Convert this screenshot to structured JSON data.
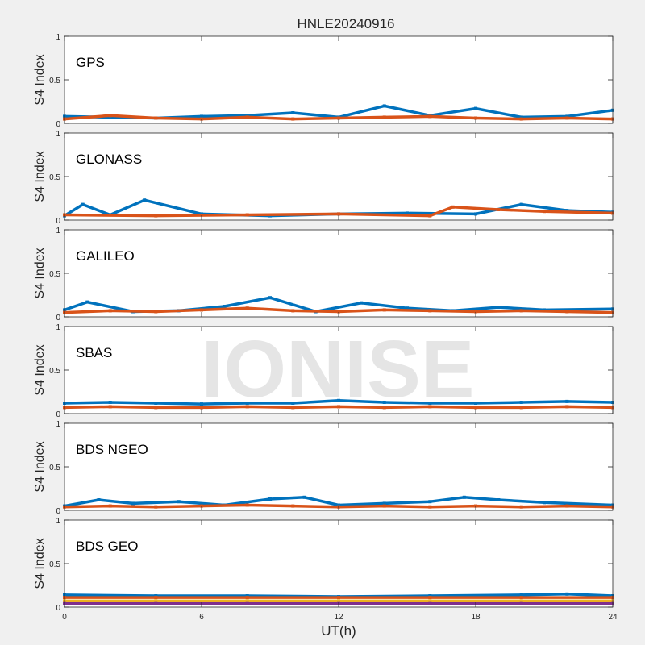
{
  "figure": {
    "title": "HNLE20240916",
    "watermark": "IONISE",
    "background_color": "#f0f0f0",
    "axes_color": "#ffffff"
  },
  "series_colors": [
    "#0072bd",
    "#d95319",
    "#edb120",
    "#7e2f8e",
    "#77ac30",
    "#4dbeee",
    "#a2142f"
  ],
  "chart_data": [
    {
      "type": "scatter",
      "panel_label": "GPS",
      "ylabel": "S4 Index",
      "xlabel": "",
      "xlim": [
        0,
        24
      ],
      "ylim": [
        0,
        1
      ],
      "xticks": [
        0,
        6,
        12,
        18,
        24
      ],
      "yticks": [
        0,
        0.5,
        1
      ],
      "yticklabels": [
        "0",
        "0.5",
        "1"
      ],
      "xticklabels": [],
      "grid": false,
      "series": [
        {
          "x": [
            0,
            2,
            4,
            6,
            8,
            10,
            12,
            14,
            16,
            18,
            20,
            22,
            24
          ],
          "y": [
            0.08,
            0.07,
            0.06,
            0.08,
            0.09,
            0.12,
            0.07,
            0.2,
            0.09,
            0.17,
            0.07,
            0.08,
            0.15
          ]
        },
        {
          "x": [
            0,
            2,
            4,
            6,
            8,
            10,
            12,
            14,
            16,
            18,
            20,
            22,
            24
          ],
          "y": [
            0.05,
            0.09,
            0.06,
            0.05,
            0.07,
            0.05,
            0.06,
            0.07,
            0.08,
            0.06,
            0.05,
            0.06,
            0.05
          ]
        }
      ]
    },
    {
      "type": "scatter",
      "panel_label": "GLONASS",
      "ylabel": "S4 Index",
      "xlabel": "",
      "xlim": [
        0,
        24
      ],
      "ylim": [
        0,
        1
      ],
      "xticks": [
        0,
        6,
        12,
        18,
        24
      ],
      "yticks": [
        0,
        0.5,
        1
      ],
      "yticklabels": [
        "0",
        "0.5",
        "1"
      ],
      "xticklabels": [],
      "grid": false,
      "series": [
        {
          "x": [
            0,
            0.8,
            2,
            3.5,
            6,
            9,
            12,
            15,
            18,
            20,
            22,
            24
          ],
          "y": [
            0.05,
            0.18,
            0.06,
            0.23,
            0.07,
            0.05,
            0.07,
            0.08,
            0.07,
            0.18,
            0.11,
            0.09
          ]
        },
        {
          "x": [
            0,
            4,
            8,
            12,
            16,
            17,
            19,
            21,
            24
          ],
          "y": [
            0.06,
            0.05,
            0.06,
            0.07,
            0.05,
            0.15,
            0.12,
            0.1,
            0.08
          ]
        }
      ]
    },
    {
      "type": "scatter",
      "panel_label": "GALILEO",
      "ylabel": "S4 Index",
      "xlabel": "",
      "xlim": [
        0,
        24
      ],
      "ylim": [
        0,
        1
      ],
      "xticks": [
        0,
        6,
        12,
        18,
        24
      ],
      "yticks": [
        0,
        0.5,
        1
      ],
      "yticklabels": [
        "0",
        "0.5",
        "1"
      ],
      "xticklabels": [],
      "grid": false,
      "series": [
        {
          "x": [
            0,
            1,
            3,
            5,
            7,
            9,
            11,
            13,
            15,
            17,
            19,
            21,
            24
          ],
          "y": [
            0.08,
            0.17,
            0.06,
            0.07,
            0.12,
            0.22,
            0.06,
            0.16,
            0.1,
            0.07,
            0.11,
            0.08,
            0.09
          ]
        },
        {
          "x": [
            0,
            2,
            4,
            6,
            8,
            10,
            12,
            14,
            16,
            18,
            20,
            22,
            24
          ],
          "y": [
            0.05,
            0.07,
            0.06,
            0.08,
            0.1,
            0.07,
            0.06,
            0.08,
            0.07,
            0.06,
            0.07,
            0.06,
            0.05
          ]
        }
      ]
    },
    {
      "type": "scatter",
      "panel_label": "SBAS",
      "ylabel": "S4 Index",
      "xlabel": "",
      "xlim": [
        0,
        24
      ],
      "ylim": [
        0,
        1
      ],
      "xticks": [
        0,
        6,
        12,
        18,
        24
      ],
      "yticks": [
        0,
        0.5,
        1
      ],
      "yticklabels": [
        "0",
        "0.5",
        "1"
      ],
      "xticklabels": [],
      "grid": false,
      "series": [
        {
          "x": [
            0,
            2,
            4,
            6,
            8,
            10,
            12,
            14,
            16,
            18,
            20,
            22,
            24
          ],
          "y": [
            0.12,
            0.13,
            0.12,
            0.11,
            0.12,
            0.12,
            0.15,
            0.13,
            0.12,
            0.12,
            0.13,
            0.14,
            0.13
          ]
        },
        {
          "x": [
            0,
            2,
            4,
            6,
            8,
            10,
            12,
            14,
            16,
            18,
            20,
            22,
            24
          ],
          "y": [
            0.07,
            0.08,
            0.07,
            0.07,
            0.08,
            0.07,
            0.08,
            0.07,
            0.08,
            0.07,
            0.07,
            0.08,
            0.07
          ]
        }
      ]
    },
    {
      "type": "scatter",
      "panel_label": "BDS NGEO",
      "ylabel": "S4 Index",
      "xlabel": "",
      "xlim": [
        0,
        24
      ],
      "ylim": [
        0,
        1
      ],
      "xticks": [
        0,
        6,
        12,
        18,
        24
      ],
      "yticks": [
        0,
        0.5,
        1
      ],
      "yticklabels": [
        "0",
        "0.5",
        "1"
      ],
      "xticklabels": [],
      "grid": false,
      "series": [
        {
          "x": [
            0,
            1.5,
            3,
            5,
            7,
            9,
            10.5,
            12,
            14,
            16,
            17.5,
            19,
            21,
            24
          ],
          "y": [
            0.05,
            0.12,
            0.08,
            0.1,
            0.06,
            0.13,
            0.15,
            0.06,
            0.08,
            0.1,
            0.15,
            0.12,
            0.09,
            0.06
          ]
        },
        {
          "x": [
            0,
            2,
            4,
            6,
            8,
            10,
            12,
            14,
            16,
            18,
            20,
            22,
            24
          ],
          "y": [
            0.04,
            0.05,
            0.04,
            0.05,
            0.06,
            0.05,
            0.04,
            0.05,
            0.04,
            0.05,
            0.04,
            0.05,
            0.04
          ]
        }
      ]
    },
    {
      "type": "scatter",
      "panel_label": "BDS GEO",
      "ylabel": "S4 Index",
      "xlabel": "UT(h)",
      "xlim": [
        0,
        24
      ],
      "ylim": [
        0,
        1
      ],
      "xticks": [
        0,
        6,
        12,
        18,
        24
      ],
      "yticks": [
        0,
        0.5,
        1
      ],
      "yticklabels": [
        "0",
        "0.5",
        "1"
      ],
      "xticklabels": [
        "0",
        "6",
        "12",
        "18",
        "24"
      ],
      "grid": false,
      "series": [
        {
          "x": [
            0,
            4,
            8,
            12,
            16,
            20,
            22,
            24
          ],
          "y": [
            0.14,
            0.13,
            0.13,
            0.12,
            0.13,
            0.14,
            0.15,
            0.13
          ]
        },
        {
          "x": [
            0,
            4,
            8,
            12,
            16,
            20,
            24
          ],
          "y": [
            0.11,
            0.11,
            0.11,
            0.11,
            0.11,
            0.11,
            0.11
          ]
        },
        {
          "x": [
            0,
            4,
            8,
            12,
            16,
            20,
            24
          ],
          "y": [
            0.07,
            0.07,
            0.07,
            0.07,
            0.07,
            0.07,
            0.07
          ]
        },
        {
          "x": [
            0,
            4,
            8,
            12,
            16,
            20,
            24
          ],
          "y": [
            0.04,
            0.04,
            0.04,
            0.04,
            0.04,
            0.04,
            0.04
          ]
        }
      ]
    }
  ]
}
